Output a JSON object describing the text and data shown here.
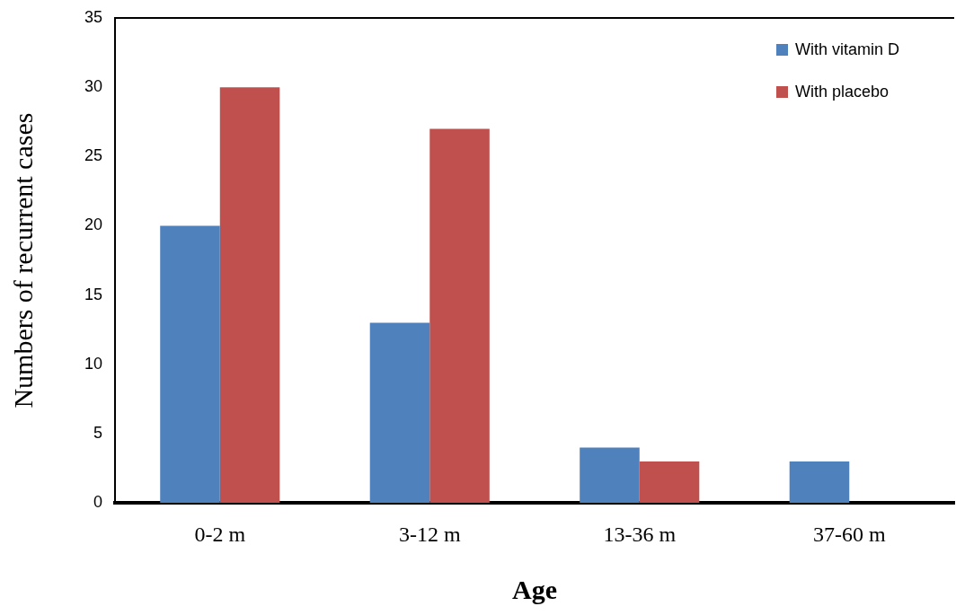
{
  "chart_data": {
    "type": "bar",
    "xlabel": "Age",
    "ylabel": "Numbers of recurrent cases",
    "categories": [
      "0-2 m",
      "3-12 m",
      "13-36 m",
      "37-60 m"
    ],
    "series": [
      {
        "name": "With vitamin D",
        "color": "#4f81bd",
        "values": [
          20,
          13,
          4,
          3
        ]
      },
      {
        "name": "With placebo",
        "color": "#c0504d",
        "values": [
          30,
          27,
          3,
          0
        ]
      }
    ],
    "ylim": [
      0,
      35
    ],
    "yticks": [
      0,
      5,
      10,
      15,
      20,
      25,
      30,
      35
    ],
    "grid": false,
    "legend": "top right"
  }
}
